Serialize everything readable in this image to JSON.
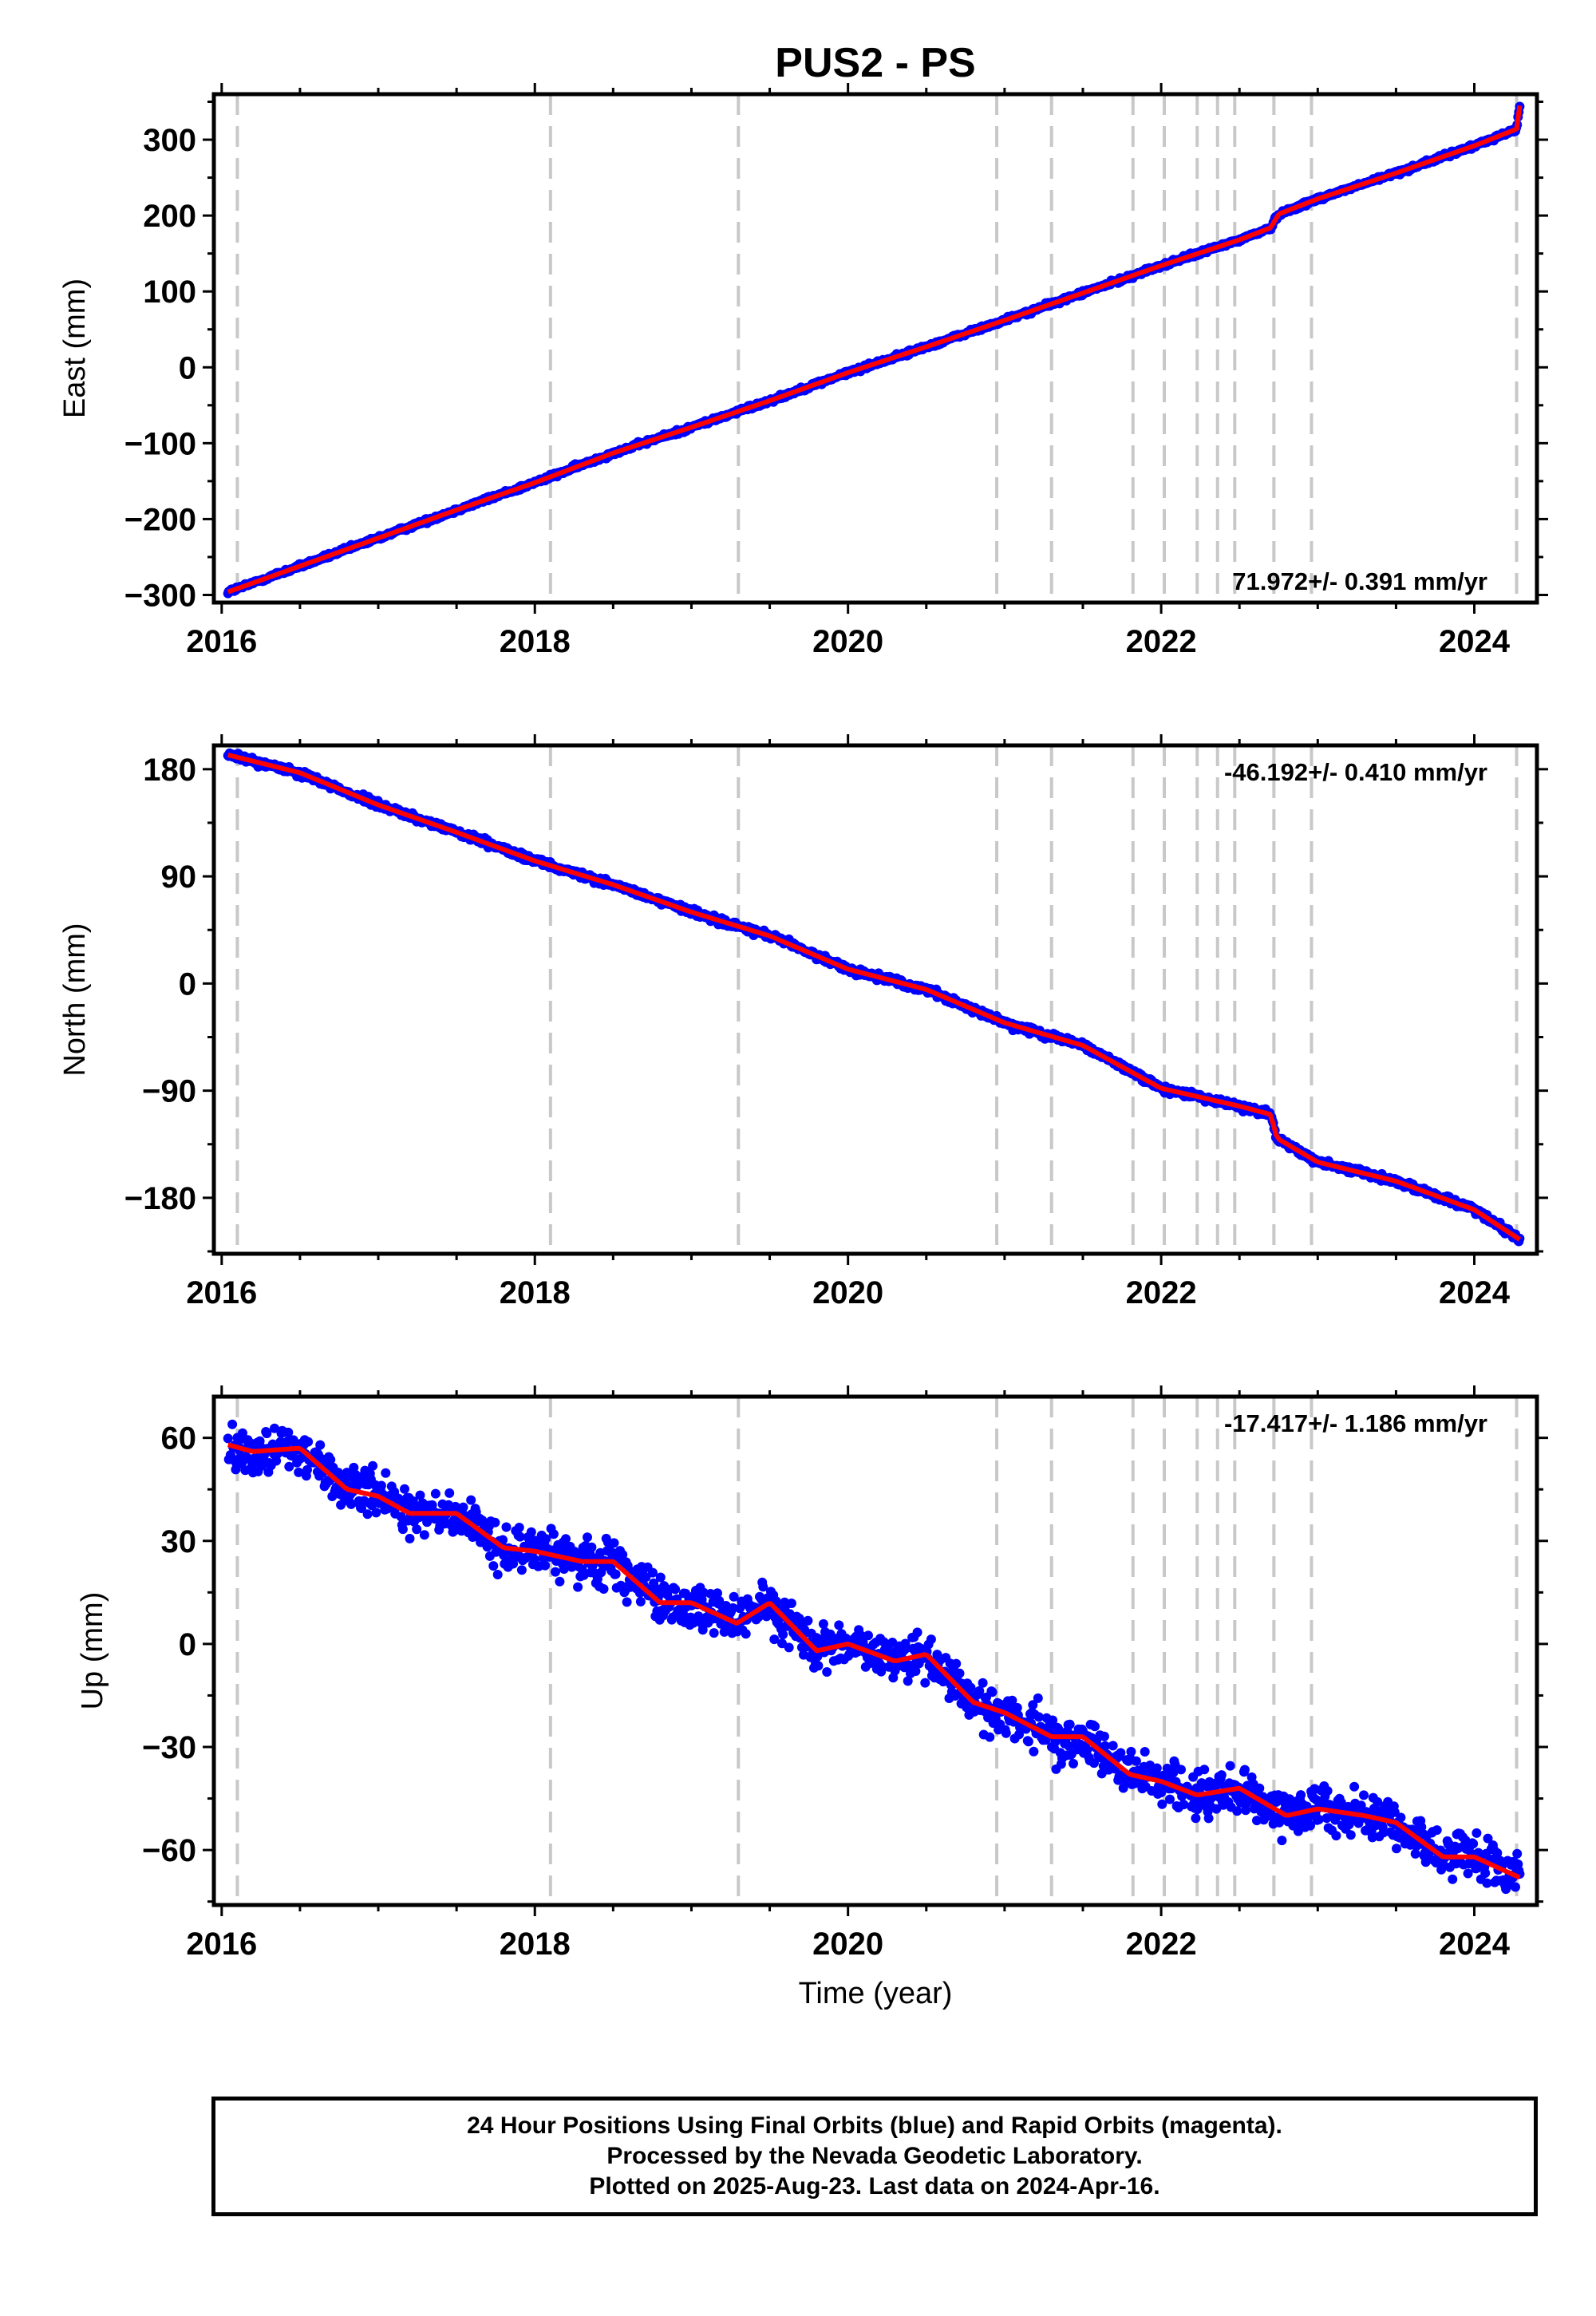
{
  "title": "PUS2 - PS",
  "x_axis_label": "Time (year)",
  "footer": {
    "lines": [
      "24 Hour Positions Using Final Orbits (blue) and Rapid Orbits (magenta).",
      "Processed by the Nevada Geodetic Laboratory.",
      "Plotted on 2025-Aug-23. Last data on 2024-Apr-16."
    ]
  },
  "colors": {
    "observations": "#0000ff",
    "model": "#ff0000",
    "event_lines": "#c8c8c8",
    "frame": "#000000"
  },
  "chart_data": [
    {
      "type": "scatter",
      "name": "east",
      "ylabel": "East (mm)",
      "xlim": [
        2015.95,
        2024.4
      ],
      "ylim": [
        -310,
        360
      ],
      "x_ticks": [
        2016,
        2018,
        2020,
        2022,
        2024
      ],
      "y_ticks": [
        -300,
        -200,
        -100,
        0,
        100,
        200,
        300
      ],
      "y_tick_labels": [
        "−300",
        "−200",
        "−100",
        "0",
        "100",
        "200",
        "300"
      ],
      "rate_label": "71.972+/- 0.391 mm/yr",
      "rate_position": "bottom-right",
      "event_lines_x": [
        2016.1,
        2018.1,
        2019.3,
        2020.95,
        2021.3,
        2021.82,
        2022.02,
        2022.23,
        2022.36,
        2022.47,
        2022.72,
        2022.96,
        2024.27
      ],
      "series": [
        {
          "name": "observations",
          "x": [
            2016.04,
            2016.5,
            2017.0,
            2017.5,
            2018.0,
            2018.5,
            2019.0,
            2019.5,
            2020.0,
            2020.5,
            2021.0,
            2021.5,
            2022.0,
            2022.5,
            2022.7,
            2022.75,
            2023.0,
            2023.5,
            2024.0,
            2024.27,
            2024.29
          ],
          "y": [
            -296,
            -262,
            -225,
            -188,
            -152,
            -113,
            -79,
            -44,
            -7,
            27,
            62,
            98,
            134,
            168,
            184,
            202,
            222,
            256,
            292,
            314,
            345
          ]
        }
      ],
      "jitter": 2.5
    },
    {
      "type": "scatter",
      "name": "north",
      "ylabel": "North (mm)",
      "xlim": [
        2015.95,
        2024.4
      ],
      "ylim": [
        -227,
        200
      ],
      "x_ticks": [
        2016,
        2018,
        2020,
        2022,
        2024
      ],
      "y_ticks": [
        -180,
        -90,
        0,
        90,
        180
      ],
      "y_tick_labels": [
        "−180",
        "−90",
        "0",
        "90",
        "180"
      ],
      "rate_label": "-46.192+/- 0.410 mm/yr",
      "rate_position": "top-right",
      "event_lines_x": [
        2016.1,
        2018.1,
        2019.3,
        2020.95,
        2021.3,
        2021.82,
        2022.02,
        2022.23,
        2022.36,
        2022.47,
        2022.72,
        2022.96,
        2024.27
      ],
      "series": [
        {
          "name": "observations",
          "x": [
            2016.04,
            2016.5,
            2017.0,
            2017.5,
            2018.0,
            2018.5,
            2019.0,
            2019.5,
            2020.0,
            2020.5,
            2021.0,
            2021.5,
            2022.0,
            2022.5,
            2022.7,
            2022.74,
            2023.0,
            2023.5,
            2024.0,
            2024.29
          ],
          "y": [
            192,
            177,
            150,
            127,
            103,
            83,
            60,
            40,
            12,
            -5,
            -33,
            -52,
            -88,
            -103,
            -110,
            -130,
            -150,
            -166,
            -190,
            -215
          ]
        }
      ],
      "jitter": 2.5
    },
    {
      "type": "scatter",
      "name": "up",
      "ylabel": "Up (mm)",
      "xlim": [
        2015.95,
        2024.4
      ],
      "ylim": [
        -76,
        72
      ],
      "x_ticks": [
        2016,
        2018,
        2020,
        2022,
        2024
      ],
      "y_ticks": [
        -60,
        -30,
        0,
        30,
        60
      ],
      "y_tick_labels": [
        "−60",
        "−30",
        "0",
        "30",
        "60"
      ],
      "rate_label": "-17.417+/- 1.186 mm/yr",
      "rate_position": "top-right",
      "event_lines_x": [
        2016.1,
        2018.1,
        2019.3,
        2020.95,
        2021.3,
        2021.82,
        2022.02,
        2022.23,
        2022.36,
        2022.47,
        2022.72,
        2022.96,
        2024.27
      ],
      "series": [
        {
          "name": "observations",
          "x": [
            2016.04,
            2016.2,
            2016.5,
            2016.8,
            2017.0,
            2017.2,
            2017.5,
            2017.8,
            2018.0,
            2018.3,
            2018.5,
            2018.8,
            2019.0,
            2019.29,
            2019.5,
            2019.8,
            2020.0,
            2020.3,
            2020.5,
            2020.8,
            2021.0,
            2021.3,
            2021.5,
            2021.8,
            2022.0,
            2022.23,
            2022.5,
            2022.8,
            2023.0,
            2023.3,
            2023.5,
            2023.8,
            2024.0,
            2024.29
          ],
          "y": [
            58,
            56,
            57,
            45,
            43,
            38,
            38,
            28,
            27,
            24,
            24,
            12,
            12,
            6,
            12,
            -2,
            0,
            -5,
            -3,
            -17,
            -20,
            -27,
            -27,
            -38,
            -40,
            -44,
            -42,
            -50,
            -48,
            -50,
            -52,
            -62,
            -62,
            -68
          ]
        }
      ],
      "jitter": 5.5
    }
  ]
}
